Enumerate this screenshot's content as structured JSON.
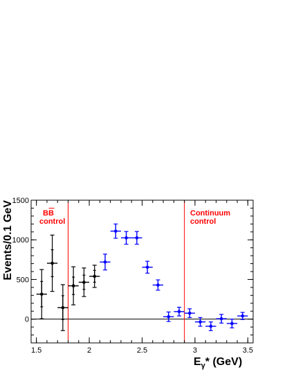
{
  "chart_data": {
    "type": "scatter",
    "xlabel": "Eγ* (GeV)",
    "ylabel": "Events/0.1 GeV",
    "xlim": [
      1.45,
      3.55
    ],
    "ylim": [
      -300,
      1500
    ],
    "x_ticks": [
      1.5,
      2,
      2.5,
      3,
      3.5
    ],
    "x_tick_labels": [
      "1.5",
      "2",
      "2.5",
      "3",
      "3.5"
    ],
    "y_ticks": [
      0,
      500,
      1000,
      1500
    ],
    "y_tick_labels": [
      "0",
      "500",
      "1000",
      "1500"
    ],
    "grid": false,
    "zero_line": 0,
    "region_lines": [
      1.8,
      2.9
    ],
    "annotations": [
      {
        "text_line1": "BB",
        "text_line2": "control",
        "overline_second_b": true
      },
      {
        "text_line1": "Continuum",
        "text_line2": "control"
      }
    ],
    "series": [
      {
        "color": "#000000",
        "points": [
          {
            "x": 1.55,
            "xerr": 0.05,
            "y": 315,
            "yerr_stat": 160,
            "yerr_total": 310
          },
          {
            "x": 1.65,
            "xerr": 0.05,
            "y": 705,
            "yerr_stat": 170,
            "yerr_total": 355
          },
          {
            "x": 1.75,
            "xerr": 0.05,
            "y": 145,
            "yerr_stat": 150,
            "yerr_total": 290
          },
          {
            "x": 1.85,
            "xerr": 0.05,
            "y": 420,
            "yerr_stat": 110,
            "yerr_total": 240
          },
          {
            "x": 1.95,
            "xerr": 0.05,
            "y": 465,
            "yerr_stat": 90,
            "yerr_total": 180
          },
          {
            "x": 2.05,
            "xerr": 0.05,
            "y": 540,
            "yerr_stat": 75,
            "yerr_total": 140
          }
        ]
      },
      {
        "color": "#0000ff",
        "points": [
          {
            "x": 2.15,
            "xerr": 0.05,
            "y": 720,
            "yerr": 100
          },
          {
            "x": 2.25,
            "xerr": 0.05,
            "y": 1110,
            "yerr": 90
          },
          {
            "x": 2.35,
            "xerr": 0.05,
            "y": 1025,
            "yerr": 80
          },
          {
            "x": 2.45,
            "xerr": 0.05,
            "y": 1025,
            "yerr": 80
          },
          {
            "x": 2.55,
            "xerr": 0.05,
            "y": 655,
            "yerr": 75
          },
          {
            "x": 2.65,
            "xerr": 0.05,
            "y": 430,
            "yerr": 65
          },
          {
            "x": 2.75,
            "xerr": 0.05,
            "y": 30,
            "yerr": 60
          },
          {
            "x": 2.85,
            "xerr": 0.05,
            "y": 95,
            "yerr": 55
          },
          {
            "x": 2.95,
            "xerr": 0.05,
            "y": 75,
            "yerr": 55
          },
          {
            "x": 3.05,
            "xerr": 0.05,
            "y": -35,
            "yerr": 55
          },
          {
            "x": 3.15,
            "xerr": 0.05,
            "y": -90,
            "yerr": 55
          },
          {
            "x": 3.25,
            "xerr": 0.05,
            "y": 5,
            "yerr": 55
          },
          {
            "x": 3.35,
            "xerr": 0.05,
            "y": -55,
            "yerr": 55
          },
          {
            "x": 3.45,
            "xerr": 0.05,
            "y": 40,
            "yerr": 45
          }
        ]
      }
    ]
  }
}
